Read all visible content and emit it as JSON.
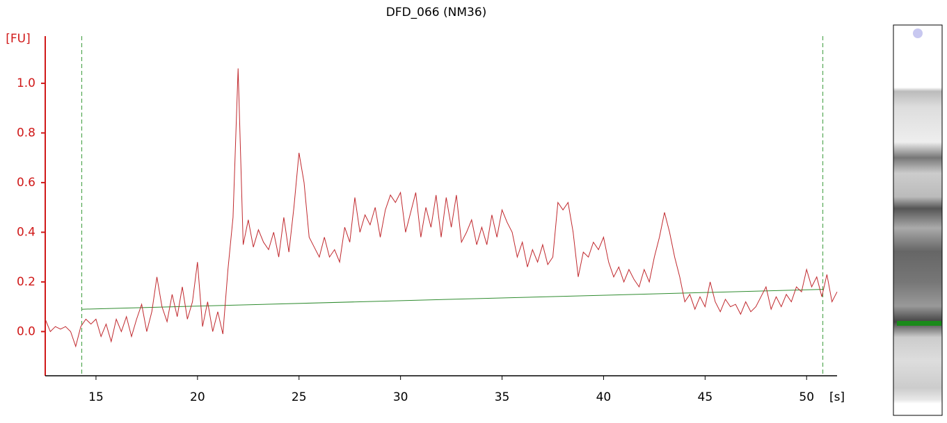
{
  "chart_data": {
    "type": "line",
    "title": "DFD_066 (NM36)",
    "y_label": "[FU]",
    "x_label": "[s]",
    "x": [
      12.5,
      12.75,
      13.0,
      13.25,
      13.5,
      13.75,
      14.0,
      14.25,
      14.5,
      14.75,
      15.0,
      15.25,
      15.5,
      15.75,
      16.0,
      16.25,
      16.5,
      16.75,
      17.0,
      17.25,
      17.5,
      17.75,
      18.0,
      18.25,
      18.5,
      18.75,
      19.0,
      19.25,
      19.5,
      19.75,
      20.0,
      20.25,
      20.5,
      20.75,
      21.0,
      21.25,
      21.5,
      21.75,
      22.0,
      22.25,
      22.5,
      22.75,
      23.0,
      23.25,
      23.5,
      23.75,
      24.0,
      24.25,
      24.5,
      24.75,
      25.0,
      25.25,
      25.5,
      25.75,
      26.0,
      26.25,
      26.5,
      26.75,
      27.0,
      27.25,
      27.5,
      27.75,
      28.0,
      28.25,
      28.5,
      28.75,
      29.0,
      29.25,
      29.5,
      29.75,
      30.0,
      30.25,
      30.5,
      30.75,
      31.0,
      31.25,
      31.5,
      31.75,
      32.0,
      32.25,
      32.5,
      32.75,
      33.0,
      33.25,
      33.5,
      33.75,
      34.0,
      34.25,
      34.5,
      34.75,
      35.0,
      35.25,
      35.5,
      35.75,
      36.0,
      36.25,
      36.5,
      36.75,
      37.0,
      37.25,
      37.5,
      37.75,
      38.0,
      38.25,
      38.5,
      38.75,
      39.0,
      39.25,
      39.5,
      39.75,
      40.0,
      40.25,
      40.5,
      40.75,
      41.0,
      41.25,
      41.5,
      41.75,
      42.0,
      42.25,
      42.5,
      42.75,
      43.0,
      43.25,
      43.5,
      43.75,
      44.0,
      44.25,
      44.5,
      44.75,
      45.0,
      45.25,
      45.5,
      45.75,
      46.0,
      46.25,
      46.5,
      46.75,
      47.0,
      47.25,
      47.5,
      47.75,
      48.0,
      48.25,
      48.5,
      48.75,
      49.0,
      49.25,
      49.5,
      49.75,
      50.0,
      50.25,
      50.5,
      50.75,
      51.0,
      51.25,
      51.5
    ],
    "series": [
      {
        "color": "#c0282d",
        "values": [
          0.05,
          0.0,
          0.02,
          0.01,
          0.02,
          0.0,
          -0.06,
          0.02,
          0.05,
          0.03,
          0.05,
          -0.02,
          0.03,
          -0.04,
          0.05,
          0.0,
          0.06,
          -0.02,
          0.05,
          0.11,
          0.0,
          0.08,
          0.22,
          0.1,
          0.04,
          0.15,
          0.06,
          0.18,
          0.05,
          0.12,
          0.28,
          0.02,
          0.12,
          0.0,
          0.08,
          -0.01,
          0.25,
          0.46,
          1.06,
          0.35,
          0.45,
          0.34,
          0.41,
          0.36,
          0.33,
          0.4,
          0.3,
          0.46,
          0.32,
          0.5,
          0.72,
          0.6,
          0.38,
          0.34,
          0.3,
          0.38,
          0.3,
          0.33,
          0.28,
          0.42,
          0.36,
          0.54,
          0.4,
          0.47,
          0.43,
          0.5,
          0.38,
          0.49,
          0.55,
          0.52,
          0.56,
          0.4,
          0.48,
          0.56,
          0.38,
          0.5,
          0.42,
          0.55,
          0.38,
          0.54,
          0.42,
          0.55,
          0.36,
          0.4,
          0.45,
          0.35,
          0.42,
          0.35,
          0.47,
          0.38,
          0.49,
          0.44,
          0.4,
          0.3,
          0.36,
          0.26,
          0.33,
          0.28,
          0.35,
          0.27,
          0.3,
          0.52,
          0.49,
          0.52,
          0.4,
          0.22,
          0.32,
          0.3,
          0.36,
          0.33,
          0.38,
          0.28,
          0.22,
          0.26,
          0.2,
          0.25,
          0.21,
          0.18,
          0.25,
          0.2,
          0.3,
          0.38,
          0.48,
          0.4,
          0.3,
          0.22,
          0.12,
          0.15,
          0.09,
          0.14,
          0.1,
          0.2,
          0.12,
          0.08,
          0.13,
          0.1,
          0.11,
          0.07,
          0.12,
          0.08,
          0.1,
          0.14,
          0.18,
          0.09,
          0.14,
          0.1,
          0.15,
          0.12,
          0.18,
          0.16,
          0.25,
          0.18,
          0.22,
          0.14,
          0.23,
          0.12,
          0.16
        ]
      }
    ],
    "baseline": {
      "color": "#2e8b2e",
      "x": [
        14.3,
        50.8
      ],
      "values": [
        0.09,
        0.17
      ]
    },
    "markers": [
      14.3,
      50.8
    ],
    "xlim": [
      12.5,
      51.5
    ],
    "ylim": [
      -0.178,
      1.19
    ],
    "xticks": [
      15,
      20,
      25,
      30,
      35,
      40,
      45,
      50
    ],
    "yticks": [
      {
        "value": 0,
        "label": "0.0"
      },
      0.2,
      0.4,
      0.6,
      0.8,
      {
        "value": 1,
        "label": "1.0"
      }
    ]
  }
}
